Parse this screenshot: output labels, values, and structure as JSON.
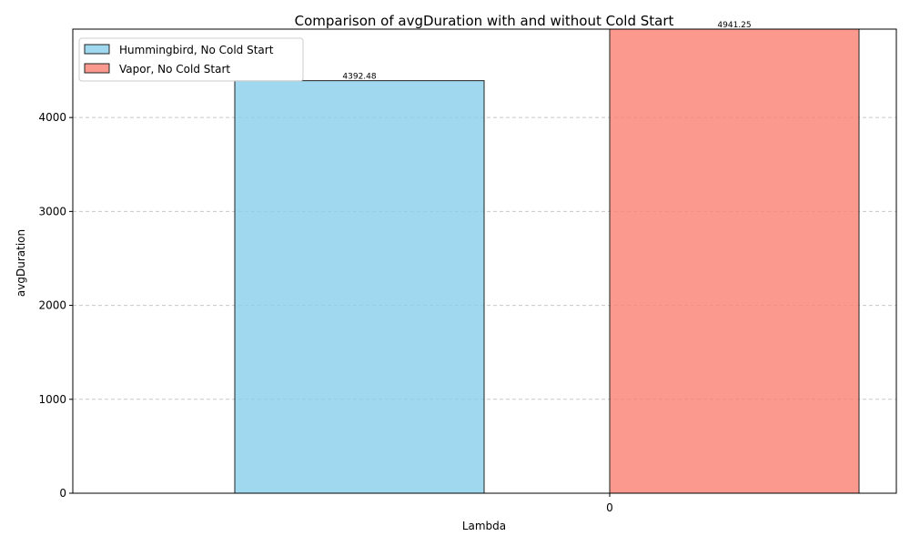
{
  "chart_data": {
    "type": "bar",
    "title": "Comparison of avgDuration with and without Cold Start",
    "xlabel": "Lambda",
    "ylabel": "avgDuration",
    "categories": [
      "0"
    ],
    "ylim": [
      0,
      4941.25
    ],
    "yticks": [
      0,
      1000,
      2000,
      3000,
      4000
    ],
    "grid": true,
    "legend_position": "upper-left",
    "series": [
      {
        "name": "Hummingbird, No Cold Start",
        "values": [
          4392.48
        ],
        "label": "4392.48",
        "color": "#87CEEB"
      },
      {
        "name": "Vapor, No Cold Start",
        "values": [
          4941.25
        ],
        "label": "4941.25",
        "color": "#FA8072"
      }
    ]
  }
}
